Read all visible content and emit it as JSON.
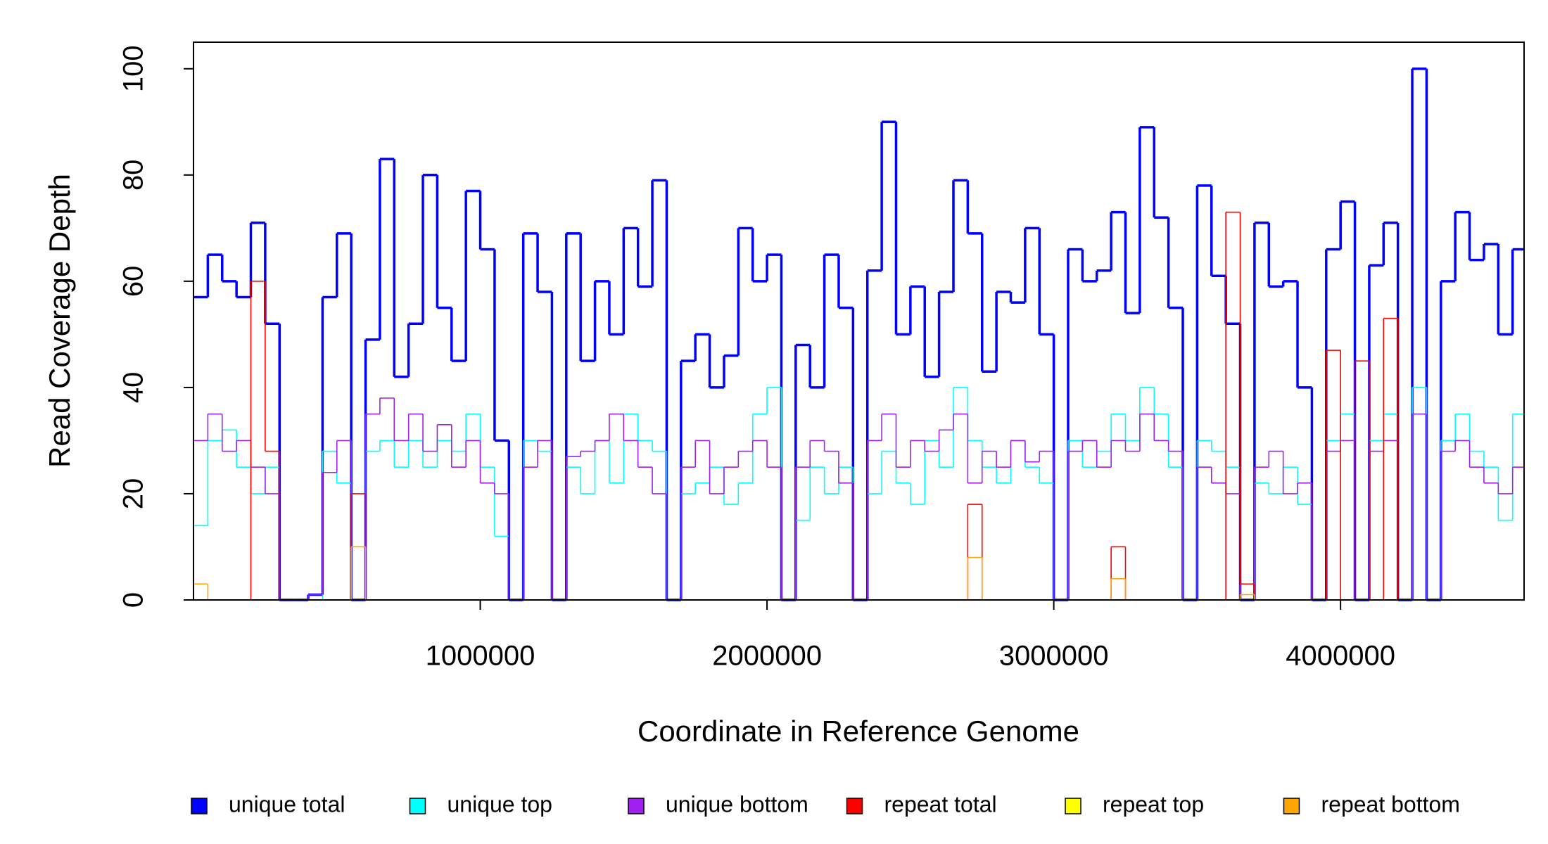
{
  "chart_data": {
    "type": "step",
    "xlabel": "Coordinate in Reference Genome",
    "ylabel": "Read Coverage Depth",
    "xlim": [
      0,
      4640000
    ],
    "ylim": [
      0,
      105
    ],
    "xticks": [
      1000000,
      2000000,
      3000000,
      4000000
    ],
    "yticks": [
      0,
      20,
      40,
      60,
      80,
      100
    ],
    "grid": false,
    "legend_position": "bottom",
    "x": [
      0,
      50000,
      100000,
      150000,
      200000,
      250000,
      300000,
      350000,
      400000,
      450000,
      500000,
      550000,
      600000,
      650000,
      700000,
      750000,
      800000,
      850000,
      900000,
      950000,
      1000000,
      1050000,
      1100000,
      1150000,
      1200000,
      1250000,
      1300000,
      1350000,
      1400000,
      1450000,
      1500000,
      1550000,
      1600000,
      1650000,
      1700000,
      1750000,
      1800000,
      1850000,
      1900000,
      1950000,
      2000000,
      2050000,
      2100000,
      2150000,
      2200000,
      2250000,
      2300000,
      2350000,
      2400000,
      2450000,
      2500000,
      2550000,
      2600000,
      2650000,
      2700000,
      2750000,
      2800000,
      2850000,
      2900000,
      2950000,
      3000000,
      3050000,
      3100000,
      3150000,
      3200000,
      3250000,
      3300000,
      3350000,
      3400000,
      3450000,
      3500000,
      3550000,
      3600000,
      3650000,
      3700000,
      3750000,
      3800000,
      3850000,
      3900000,
      3950000,
      4000000,
      4050000,
      4100000,
      4150000,
      4200000,
      4250000,
      4300000,
      4350000,
      4400000,
      4450000,
      4500000,
      4550000,
      4600000
    ],
    "series": [
      {
        "name": "unique total",
        "color": "#0000ff",
        "values": [
          57,
          65,
          60,
          57,
          71,
          52,
          0,
          0,
          1,
          57,
          69,
          0,
          49,
          83,
          42,
          52,
          80,
          55,
          45,
          77,
          66,
          30,
          0,
          69,
          58,
          0,
          69,
          45,
          60,
          50,
          70,
          59,
          79,
          0,
          45,
          50,
          40,
          46,
          70,
          60,
          65,
          0,
          48,
          40,
          65,
          55,
          0,
          62,
          90,
          50,
          59,
          42,
          58,
          79,
          69,
          43,
          58,
          56,
          70,
          50,
          0,
          66,
          60,
          62,
          73,
          54,
          89,
          72,
          55,
          0,
          78,
          61,
          52,
          0,
          71,
          59,
          60,
          40,
          0,
          66,
          75,
          0,
          63,
          71,
          0,
          100,
          0,
          60,
          73,
          64,
          67,
          50,
          66
        ]
      },
      {
        "name": "unique top",
        "color": "#00ffff",
        "values": [
          14,
          30,
          32,
          25,
          20,
          25,
          0,
          0,
          0,
          28,
          22,
          0,
          28,
          30,
          25,
          30,
          25,
          30,
          28,
          35,
          25,
          12,
          0,
          30,
          28,
          0,
          25,
          20,
          30,
          22,
          35,
          30,
          28,
          0,
          20,
          22,
          25,
          18,
          22,
          35,
          40,
          0,
          15,
          25,
          20,
          25,
          0,
          20,
          28,
          22,
          18,
          30,
          25,
          40,
          30,
          25,
          22,
          30,
          25,
          22,
          0,
          30,
          25,
          28,
          35,
          30,
          40,
          35,
          25,
          0,
          30,
          28,
          25,
          0,
          22,
          20,
          25,
          18,
          0,
          30,
          35,
          0,
          30,
          35,
          0,
          40,
          0,
          30,
          35,
          28,
          25,
          15,
          35
        ]
      },
      {
        "name": "unique bottom",
        "color": "#a020f0",
        "values": [
          30,
          35,
          28,
          30,
          25,
          20,
          0,
          0,
          1,
          24,
          30,
          0,
          35,
          38,
          30,
          35,
          28,
          33,
          25,
          30,
          22,
          20,
          0,
          25,
          30,
          0,
          27,
          28,
          30,
          35,
          30,
          25,
          20,
          0,
          25,
          30,
          20,
          25,
          28,
          30,
          25,
          0,
          25,
          30,
          28,
          22,
          0,
          30,
          35,
          25,
          30,
          28,
          32,
          35,
          22,
          28,
          25,
          30,
          26,
          28,
          0,
          28,
          30,
          25,
          30,
          28,
          35,
          30,
          28,
          0,
          25,
          22,
          20,
          0,
          25,
          28,
          20,
          22,
          0,
          28,
          30,
          0,
          28,
          30,
          0,
          35,
          0,
          28,
          30,
          25,
          22,
          20,
          25
        ]
      },
      {
        "name": "repeat total",
        "color": "#ff0000",
        "values": [
          0,
          0,
          0,
          0,
          60,
          28,
          0,
          0,
          0,
          0,
          0,
          20,
          0,
          0,
          0,
          0,
          0,
          0,
          0,
          0,
          0,
          0,
          0,
          0,
          0,
          0,
          0,
          0,
          0,
          0,
          0,
          0,
          0,
          0,
          0,
          0,
          0,
          0,
          0,
          0,
          0,
          0,
          0,
          0,
          0,
          0,
          0,
          0,
          0,
          0,
          0,
          0,
          0,
          0,
          18,
          0,
          0,
          0,
          0,
          0,
          0,
          0,
          0,
          0,
          10,
          0,
          0,
          0,
          0,
          0,
          0,
          0,
          73,
          3,
          0,
          0,
          0,
          0,
          0,
          47,
          0,
          45,
          0,
          53,
          0,
          0,
          0,
          0,
          0,
          0,
          0,
          0,
          0
        ]
      },
      {
        "name": "repeat top",
        "color": "#ffff00",
        "values": [
          0,
          0,
          0,
          0,
          0,
          0,
          0,
          0,
          0,
          0,
          0,
          0,
          0,
          0,
          0,
          0,
          0,
          0,
          0,
          0,
          0,
          0,
          0,
          0,
          0,
          0,
          0,
          0,
          0,
          0,
          0,
          0,
          0,
          0,
          0,
          0,
          0,
          0,
          0,
          0,
          0,
          0,
          0,
          0,
          0,
          0,
          0,
          0,
          0,
          0,
          0,
          0,
          0,
          0,
          0,
          0,
          0,
          0,
          0,
          0,
          0,
          0,
          0,
          0,
          0,
          0,
          0,
          0,
          0,
          0,
          0,
          0,
          0,
          0,
          0,
          0,
          0,
          0,
          0,
          0,
          0,
          0,
          0,
          0,
          0,
          0,
          0,
          0,
          0,
          0,
          0,
          0,
          0
        ]
      },
      {
        "name": "repeat bottom",
        "color": "#ffa500",
        "values": [
          3,
          0,
          0,
          0,
          0,
          0,
          0,
          0,
          0,
          0,
          0,
          10,
          0,
          0,
          0,
          0,
          0,
          0,
          0,
          0,
          0,
          0,
          0,
          0,
          0,
          0,
          0,
          0,
          0,
          0,
          0,
          0,
          0,
          0,
          0,
          0,
          0,
          0,
          0,
          0,
          0,
          0,
          0,
          0,
          0,
          0,
          0,
          0,
          0,
          0,
          0,
          0,
          0,
          0,
          8,
          0,
          0,
          0,
          0,
          0,
          0,
          0,
          0,
          0,
          4,
          0,
          0,
          0,
          0,
          0,
          0,
          0,
          0,
          1,
          0,
          0,
          0,
          0,
          0,
          0,
          0,
          0,
          0,
          0,
          0,
          0,
          0,
          0,
          0,
          0,
          0,
          0,
          0
        ]
      }
    ]
  }
}
